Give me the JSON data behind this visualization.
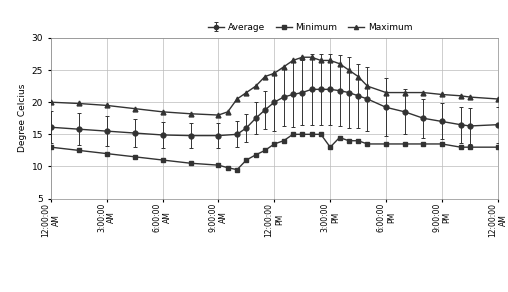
{
  "time_labels": [
    "12:00:00\nAM",
    "3:00:00\nAM",
    "6:00:00\nAM",
    "9:00:00\nAM",
    "12:00:00\nPM",
    "3:00:00\nPM",
    "6:00:00\nPM",
    "9:00:00\nPM",
    "12:00:00\nAM"
  ],
  "xtick_pos": [
    0,
    3,
    6,
    9,
    12,
    15,
    18,
    21,
    24
  ],
  "ylabel": "Degree Celcius",
  "ylim": [
    5,
    30
  ],
  "yticks": [
    5,
    10,
    15,
    20,
    25,
    30
  ],
  "line_color": "#333333",
  "bg_color": "#ffffff",
  "grid_color": "#bbbbbb",
  "legend_avg": "Average",
  "legend_min": "Minimum",
  "legend_max": "Maximum",
  "marker_avg": "o",
  "marker_min": "s",
  "marker_max": "^",
  "avg_x": [
    0,
    1.5,
    3,
    4.5,
    6,
    7.5,
    9,
    10,
    10.5,
    11,
    11.5,
    12,
    12.5,
    13,
    13.5,
    14,
    14.5,
    15,
    15.5,
    16,
    16.5,
    17,
    18,
    19,
    20,
    21,
    22,
    22.5,
    24
  ],
  "avg_y": [
    16.1,
    15.8,
    15.5,
    15.2,
    14.9,
    14.8,
    14.8,
    15.0,
    16.0,
    17.5,
    18.8,
    20.0,
    20.8,
    21.2,
    21.5,
    22.0,
    22.0,
    22.0,
    21.8,
    21.5,
    21.0,
    20.5,
    19.2,
    18.5,
    17.5,
    17.0,
    16.5,
    16.3,
    16.5
  ],
  "avg_el": [
    2.5,
    2.5,
    2.3,
    2.2,
    2.0,
    2.0,
    2.0,
    2.0,
    2.2,
    2.5,
    3.0,
    4.5,
    4.5,
    5.0,
    5.0,
    5.5,
    5.5,
    5.5,
    5.5,
    5.5,
    5.0,
    5.0,
    4.5,
    3.5,
    3.0,
    2.8,
    2.8,
    2.8,
    2.8
  ],
  "avg_eh": [
    2.5,
    2.5,
    2.3,
    2.2,
    2.0,
    2.0,
    2.0,
    2.0,
    2.2,
    2.5,
    3.0,
    4.5,
    4.5,
    5.0,
    5.0,
    5.5,
    5.5,
    5.5,
    5.5,
    5.5,
    5.0,
    5.0,
    4.5,
    3.5,
    3.0,
    2.8,
    2.8,
    2.8,
    2.8
  ],
  "min_x": [
    0,
    1.5,
    3,
    4.5,
    6,
    7.5,
    9,
    9.5,
    10,
    10.5,
    11,
    11.5,
    12,
    12.5,
    13,
    13.5,
    14,
    14.5,
    15,
    15.5,
    16,
    16.5,
    17,
    18,
    19,
    20,
    21,
    22,
    22.5,
    24
  ],
  "min_y": [
    13.0,
    12.5,
    12.0,
    11.5,
    11.0,
    10.5,
    10.2,
    9.8,
    9.5,
    11.0,
    11.8,
    12.5,
    13.5,
    14.0,
    15.0,
    15.0,
    15.0,
    15.0,
    13.0,
    14.5,
    14.0,
    14.0,
    13.5,
    13.5,
    13.5,
    13.5,
    13.5,
    13.0,
    13.0,
    13.0
  ],
  "max_x": [
    0,
    1.5,
    3,
    4.5,
    6,
    7.5,
    9,
    9.5,
    10,
    10.5,
    11,
    11.5,
    12,
    12.5,
    13,
    13.5,
    14,
    14.5,
    15,
    15.5,
    16,
    16.5,
    17,
    18,
    19,
    20,
    21,
    22,
    22.5,
    24
  ],
  "max_y": [
    20.0,
    19.8,
    19.5,
    19.0,
    18.5,
    18.2,
    18.0,
    18.5,
    20.5,
    21.5,
    22.5,
    24.0,
    24.5,
    25.5,
    26.5,
    27.0,
    27.0,
    26.5,
    26.5,
    26.0,
    25.0,
    24.0,
    22.5,
    21.5,
    21.5,
    21.5,
    21.2,
    21.0,
    20.8,
    20.5
  ]
}
